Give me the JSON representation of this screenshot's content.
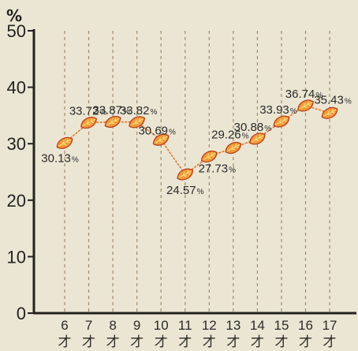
{
  "chart_data": {
    "type": "line",
    "title": "",
    "ylabel": "%",
    "xlabel": "",
    "ylim": [
      0,
      50
    ],
    "yticks": [
      0,
      10,
      20,
      30,
      40,
      50
    ],
    "grid": "vertical dashed",
    "categories": [
      {
        "num": "6",
        "unit": "才"
      },
      {
        "num": "7",
        "unit": "才"
      },
      {
        "num": "8",
        "unit": "才"
      },
      {
        "num": "9",
        "unit": "才"
      },
      {
        "num": "10",
        "unit": "才"
      },
      {
        "num": "11",
        "unit": "才"
      },
      {
        "num": "12",
        "unit": "才"
      },
      {
        "num": "13",
        "unit": "才"
      },
      {
        "num": "14",
        "unit": "才"
      },
      {
        "num": "15",
        "unit": "才"
      },
      {
        "num": "16",
        "unit": "才"
      },
      {
        "num": "17",
        "unit": "才"
      }
    ],
    "values": [
      30.13,
      33.72,
      33.87,
      33.82,
      30.69,
      24.57,
      27.73,
      29.26,
      30.88,
      33.93,
      36.74,
      35.43
    ],
    "labels": [
      {
        "num": "30.13",
        "unit": "%"
      },
      {
        "num": "33.72",
        "unit": "%"
      },
      {
        "num": "33.87",
        "unit": "%"
      },
      {
        "num": "33.82",
        "unit": "%"
      },
      {
        "num": "30.69",
        "unit": "%"
      },
      {
        "num": "24.57",
        "unit": "%"
      },
      {
        "num": "27.73",
        "unit": "%"
      },
      {
        "num": "29.26",
        "unit": "%"
      },
      {
        "num": "30.88",
        "unit": "%"
      },
      {
        "num": "33.93",
        "unit": "%"
      },
      {
        "num": "36.74",
        "unit": "%"
      },
      {
        "num": "35.43",
        "unit": "%"
      }
    ],
    "colors": {
      "line": "#e8732a",
      "marker_fill": "#f29a3a",
      "marker_edge": "#b83a1a",
      "marker_vein": "#ffe27a",
      "axis": "#222222",
      "grid": "#a08a6a",
      "text": "#2a2a2a"
    }
  }
}
